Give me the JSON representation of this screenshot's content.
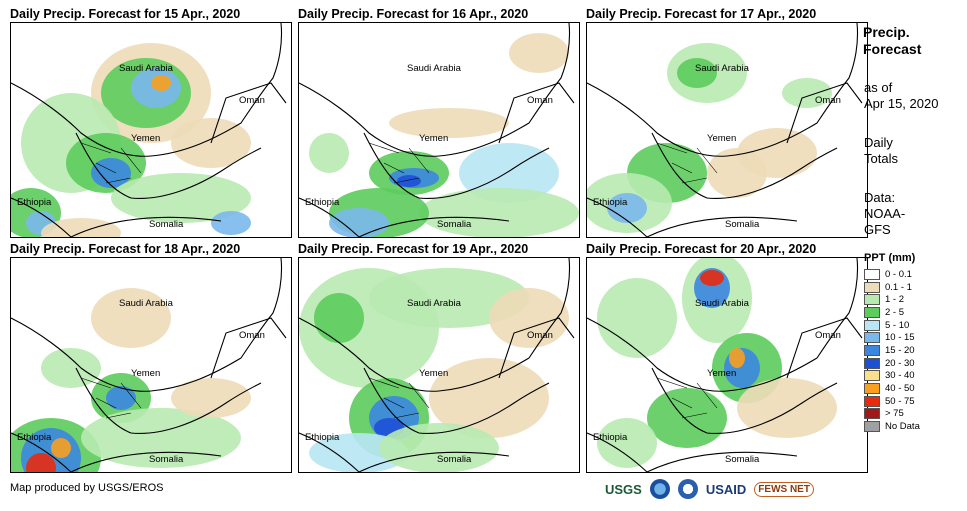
{
  "panels": [
    {
      "title": "Daily Precip. Forecast for 15 Apr., 2020",
      "pattern": 0
    },
    {
      "title": "Daily Precip. Forecast for 16 Apr., 2020",
      "pattern": 1
    },
    {
      "title": "Daily Precip. Forecast for 17 Apr., 2020",
      "pattern": 2
    },
    {
      "title": "Daily Precip. Forecast for 18 Apr., 2020",
      "pattern": 3
    },
    {
      "title": "Daily Precip. Forecast for 19 Apr., 2020",
      "pattern": 4
    },
    {
      "title": "Daily Precip. Forecast for 20 Apr., 2020",
      "pattern": 5
    }
  ],
  "map_labels": {
    "saudi": "Saudi Arabia",
    "oman": "Oman",
    "yemen": "Yemen",
    "ethiopia": "Ethiopia",
    "somalia": "Somalia"
  },
  "legend": {
    "title_line1": "Precip.",
    "title_line2": "Forecast",
    "asof_line1": "as of",
    "asof_line2": "Apr 15, 2020",
    "daily_line1": "Daily",
    "daily_line2": "Totals",
    "data_line1": "Data:",
    "data_line2": "NOAA-",
    "data_line3": "GFS",
    "ppt_title": "PPT (mm)",
    "classes": [
      {
        "label": "0 - 0.1",
        "color": "#ffffff"
      },
      {
        "label": "0.1 - 1",
        "color": "#eddcb8"
      },
      {
        "label": "1 - 2",
        "color": "#b8eab0"
      },
      {
        "label": "2 - 5",
        "color": "#5ccc5c"
      },
      {
        "label": "5 - 10",
        "color": "#b8e6f4"
      },
      {
        "label": "10 - 15",
        "color": "#7ab8ec"
      },
      {
        "label": "15 - 20",
        "color": "#3c86e0"
      },
      {
        "label": "20 - 30",
        "color": "#1e50d6"
      },
      {
        "label": "30 - 40",
        "color": "#f8e08c"
      },
      {
        "label": "40 - 50",
        "color": "#f8a020"
      },
      {
        "label": "50 - 75",
        "color": "#e82a10"
      },
      {
        "label": "> 75",
        "color": "#a01818"
      },
      {
        "label": "No Data",
        "color": "#a0a0a0"
      }
    ]
  },
  "credit": "Map produced by USGS/EROS",
  "logos": {
    "usgs": "USGS",
    "usaid": "USAID",
    "fews": "FEWS NET"
  }
}
